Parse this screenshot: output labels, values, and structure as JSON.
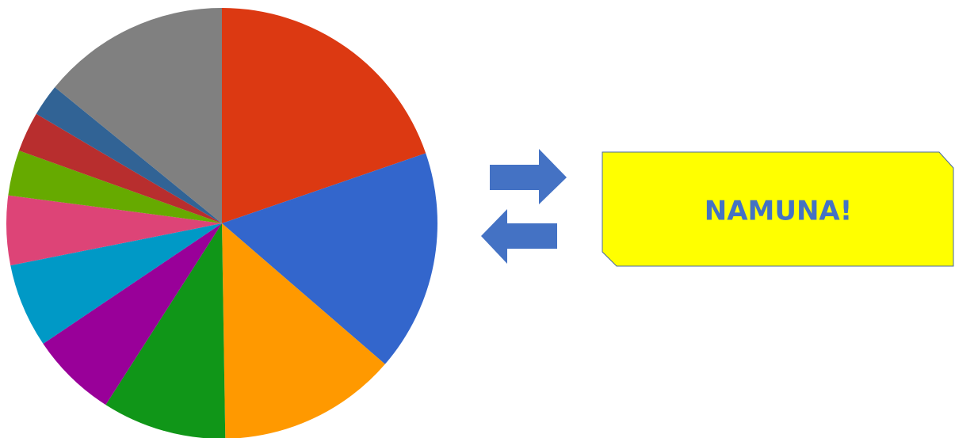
{
  "chart_data": {
    "type": "pie",
    "values": [
      19.7,
      16.6,
      13.4,
      9.3,
      6.5,
      6.3,
      5.2,
      3.4,
      3.0,
      2.4,
      14.1
    ],
    "colors": [
      "#dc3912",
      "#3366cc",
      "#ff9900",
      "#109618",
      "#990099",
      "#0099c6",
      "#dd4477",
      "#66aa00",
      "#b82e2e",
      "#316395",
      "#808080"
    ],
    "annotation": "NAMUNA!"
  }
}
